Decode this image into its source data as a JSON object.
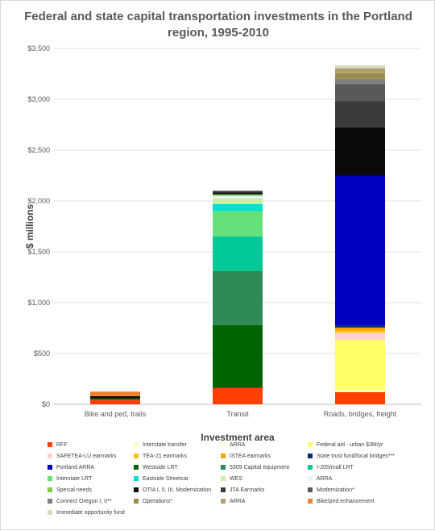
{
  "chart_data": {
    "type": "bar",
    "stacked": true,
    "title": "Federal and state capital transportation investments in the Portland region, 1995-2010",
    "xlabel": "Investment area",
    "ylabel": "$ millions",
    "ylim": [
      0,
      3500
    ],
    "yticks": [
      0,
      500,
      1000,
      1500,
      2000,
      2500,
      3000,
      3500
    ],
    "ytick_labels": [
      "$0",
      "$500",
      "$1,000",
      "$1,500",
      "$2,000",
      "$2,500",
      "$3,000",
      "$3,500"
    ],
    "grid": true,
    "legend_position": "bottom",
    "categories": [
      "Bike and ped, trails",
      "Transit",
      "Roads, bridges, freight"
    ],
    "series": [
      {
        "name": "RFF",
        "color": "#ff4000",
        "values": [
          45,
          160,
          120
        ]
      },
      {
        "name": "Interstate transfer",
        "color": "#ffffc0",
        "values": [
          0,
          0,
          15
        ]
      },
      {
        "name": "ARRA",
        "color": "#ffffe0",
        "values": [
          0,
          0,
          5
        ]
      },
      {
        "name": "Federal aid - urban $3M/yr",
        "color": "#ffff66",
        "values": [
          0,
          0,
          495
        ]
      },
      {
        "name": "SAFETEA-LU earmarks",
        "color": "#ffd0d0",
        "values": [
          0,
          0,
          70
        ]
      },
      {
        "name": "TEA-21 earmarks",
        "color": "#ffc000",
        "values": [
          0,
          0,
          20
        ]
      },
      {
        "name": "ISTEA earmarks",
        "color": "#f4a300",
        "values": [
          0,
          0,
          30
        ]
      },
      {
        "name": "State trust fund/local bridges***",
        "color": "#002a80",
        "values": [
          0,
          0,
          20
        ]
      },
      {
        "name": "Portland ARRA",
        "color": "#0000c0",
        "values": [
          0,
          0,
          1475
        ]
      },
      {
        "name": "Westside LRT",
        "color": "#006400",
        "values": [
          15,
          620,
          0
        ]
      },
      {
        "name": "5309 Capital equipment",
        "color": "#2e8b57",
        "values": [
          0,
          530,
          0
        ]
      },
      {
        "name": "I-205/mall LRT",
        "color": "#00c896",
        "values": [
          0,
          340,
          0
        ]
      },
      {
        "name": "Interstate LRT",
        "color": "#66e07a",
        "values": [
          0,
          250,
          0
        ]
      },
      {
        "name": "Eastside Streetcar",
        "color": "#00e0d0",
        "values": [
          0,
          70,
          0
        ]
      },
      {
        "name": "WES",
        "color": "#c8f0a0",
        "values": [
          0,
          55,
          0
        ]
      },
      {
        "name": "ARRA",
        "color": "#e0f4ff",
        "values": [
          0,
          25,
          0
        ]
      },
      {
        "name": "Special needs",
        "color": "#7ccd4c",
        "values": [
          0,
          15,
          0
        ]
      },
      {
        "name": "OTIA I, II, III, Modernization",
        "color": "#0a0a0a",
        "values": [
          20,
          20,
          475
        ]
      },
      {
        "name": "JTA Earmarks",
        "color": "#3a3a3a",
        "values": [
          0,
          10,
          255
        ]
      },
      {
        "name": "Modernization*",
        "color": "#595959",
        "values": [
          0,
          5,
          170
        ]
      },
      {
        "name": "Connect Oregon I, II**",
        "color": "#7f7f7f",
        "values": [
          0,
          0,
          50
        ]
      },
      {
        "name": "Operations*",
        "color": "#9c8a4a",
        "values": [
          0,
          0,
          55
        ]
      },
      {
        "name": "ARRA",
        "color": "#b0a070",
        "values": [
          0,
          0,
          50
        ]
      },
      {
        "name": "Bike/ped enhancement",
        "color": "#f08030",
        "values": [
          45,
          0,
          0
        ]
      },
      {
        "name": "Immediate opportunity fund",
        "color": "#ddd9c3",
        "values": [
          0,
          0,
          30
        ]
      }
    ]
  }
}
